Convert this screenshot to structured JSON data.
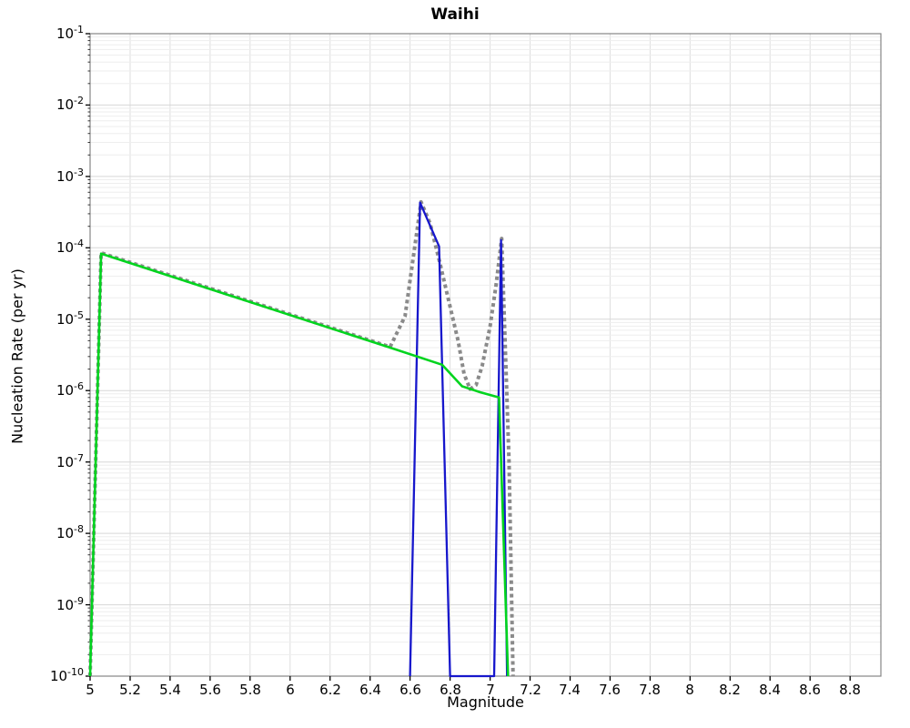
{
  "title": "Waihi",
  "chart_data": {
    "type": "line",
    "title": "Waihi",
    "xlabel": "Magnitude",
    "ylabel": "Nucleation Rate (per yr)",
    "x_range": [
      5.0,
      8.954
    ],
    "y_scale": "log",
    "y_range": [
      1e-10,
      0.1
    ],
    "grid": "major and log-minor gridlines on, light gray",
    "legend_position": "none",
    "x_ticks": [
      5,
      5.2,
      5.4,
      5.6,
      5.8,
      6,
      6.2,
      6.4,
      6.6,
      6.8,
      7,
      7.2,
      7.4,
      7.6,
      7.8,
      8,
      8.2,
      8.4,
      8.6,
      8.8
    ],
    "x_tick_labels": [
      "5",
      "5.2",
      "5.4",
      "5.6",
      "5.8",
      "6",
      "6.2",
      "6.4",
      "6.6",
      "6.8",
      "7",
      "7.2",
      "7.4",
      "7.6",
      "7.8",
      "8",
      "8.2",
      "8.4",
      "8.6",
      "8.8"
    ],
    "y_tick_exponents": [
      -1,
      -2,
      -3,
      -4,
      -5,
      -6,
      -7,
      -8,
      -9,
      -10
    ],
    "colors": {
      "total_dotted": "#8a8a8a",
      "characteristic_blue": "#1717cc",
      "subseismo_green": "#00d41e"
    },
    "series": [
      {
        "name": "total-rate-dotted",
        "color": "#8a8a8a",
        "style": "dotted",
        "width": 4,
        "points": [
          [
            5.0,
            1e-10
          ],
          [
            5.055,
            8.5e-05
          ],
          [
            6.5,
            4.1e-06
          ],
          [
            6.575,
            1.1e-05
          ],
          [
            6.6,
            3.5e-05
          ],
          [
            6.655,
            0.00044
          ],
          [
            6.7,
            0.00022
          ],
          [
            6.75,
            6e-05
          ],
          [
            6.8,
            1.5e-05
          ],
          [
            6.84,
            5e-06
          ],
          [
            6.87,
            1.7e-06
          ],
          [
            6.9,
            1.05e-06
          ],
          [
            6.93,
            1.2e-06
          ],
          [
            6.96,
            2.2e-06
          ],
          [
            7.0,
            8e-06
          ],
          [
            7.03,
            3e-05
          ],
          [
            7.058,
            0.000135
          ],
          [
            7.075,
            5e-06
          ],
          [
            7.095,
            1e-07
          ],
          [
            7.115,
            1e-10
          ]
        ]
      },
      {
        "name": "characteristic-rate-blue",
        "color": "#1717cc",
        "style": "solid",
        "width": 2.3,
        "points": [
          [
            6.6,
            1e-10
          ],
          [
            6.65,
            0.00043
          ],
          [
            6.745,
            0.000105
          ],
          [
            6.8,
            1e-10
          ],
          [
            7.02,
            1e-10
          ],
          [
            7.055,
            0.000128
          ],
          [
            7.085,
            1e-10
          ]
        ]
      },
      {
        "name": "sub-seismogenic-rate-green",
        "color": "#00d41e",
        "style": "solid",
        "width": 2.6,
        "points": [
          [
            5.0,
            1e-10
          ],
          [
            5.055,
            8.3e-05
          ],
          [
            6.5,
            4e-06
          ],
          [
            6.76,
            2.3e-06
          ],
          [
            6.86,
            1.15e-06
          ],
          [
            6.95,
            9.5e-07
          ],
          [
            7.045,
            8e-07
          ],
          [
            7.09,
            1e-10
          ]
        ]
      }
    ]
  }
}
